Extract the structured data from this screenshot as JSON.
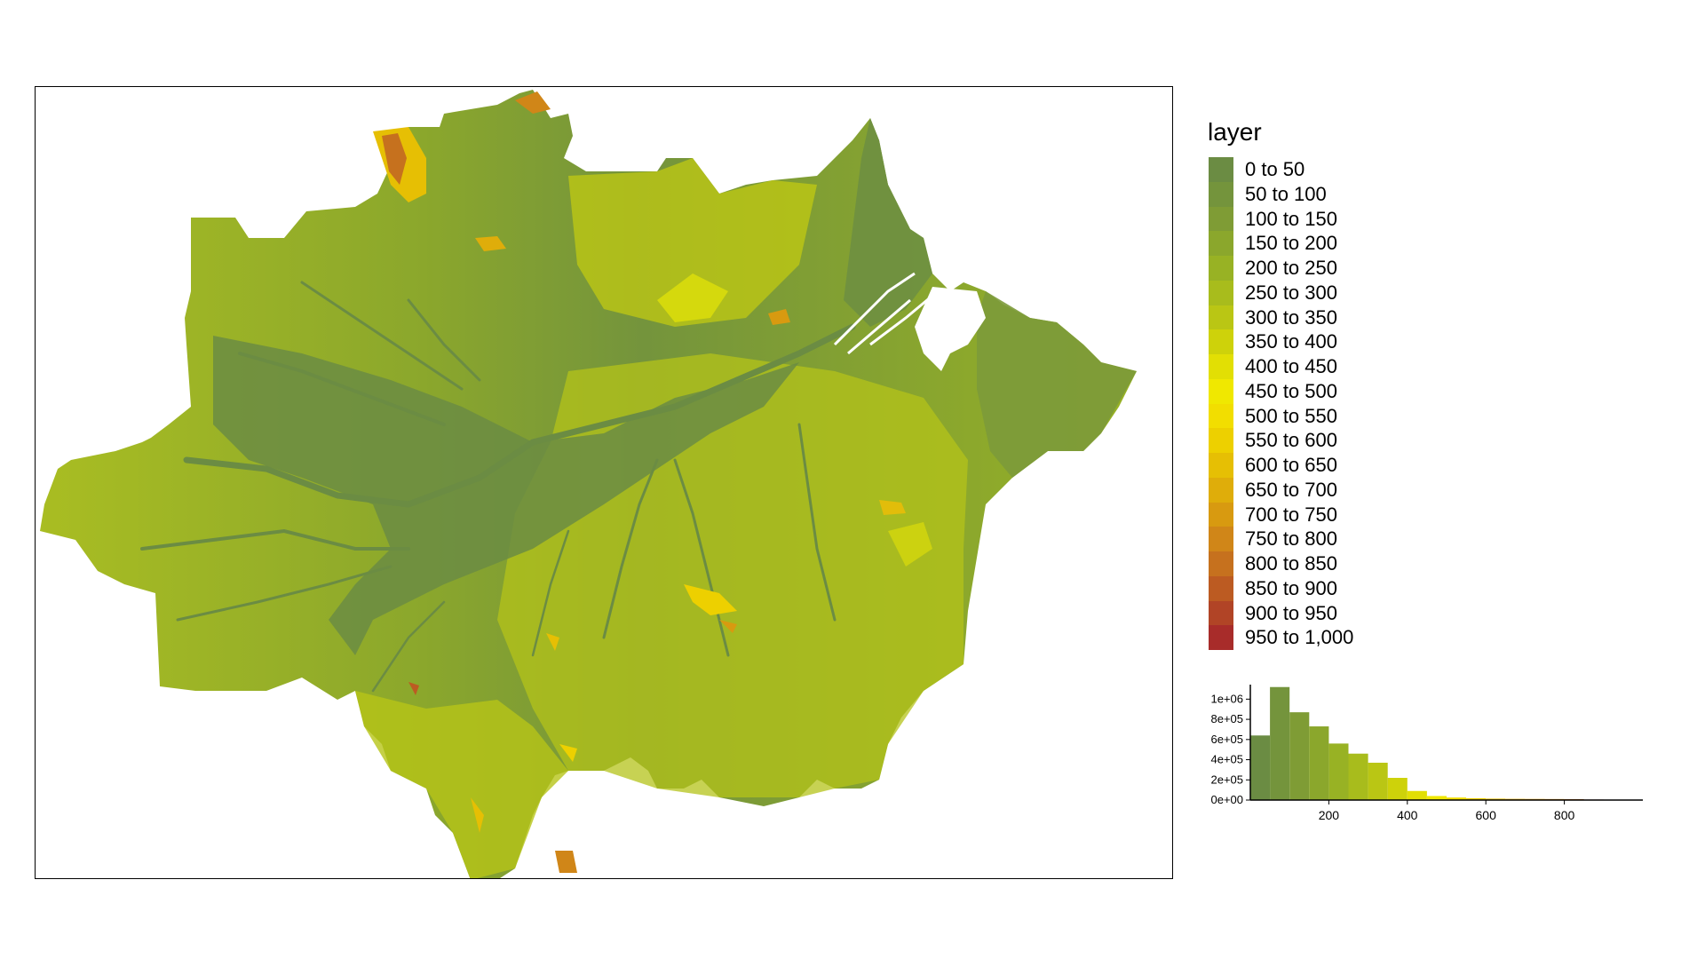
{
  "legend": {
    "title": "layer",
    "classes": [
      {
        "label": "0 to 50",
        "color": "#6b8c43"
      },
      {
        "label": "50 to 100",
        "color": "#74943c"
      },
      {
        "label": "100 to 150",
        "color": "#7f9c35"
      },
      {
        "label": "150 to 200",
        "color": "#8ba72c"
      },
      {
        "label": "200 to 250",
        "color": "#98b224"
      },
      {
        "label": "250 to 300",
        "color": "#a8bc1c"
      },
      {
        "label": "300 to 350",
        "color": "#bac614"
      },
      {
        "label": "350 to 400",
        "color": "#ced20a"
      },
      {
        "label": "400 to 450",
        "color": "#e2df04"
      },
      {
        "label": "450 to 500",
        "color": "#f0e800"
      },
      {
        "label": "500 to 550",
        "color": "#f2de00"
      },
      {
        "label": "550 to 600",
        "color": "#edd000"
      },
      {
        "label": "600 to 650",
        "color": "#e6bf04"
      },
      {
        "label": "650 to 700",
        "color": "#dfad0a"
      },
      {
        "label": "700 to 750",
        "color": "#d89a10"
      },
      {
        "label": "750 to 800",
        "color": "#d08618"
      },
      {
        "label": "800 to 850",
        "color": "#c6711e"
      },
      {
        "label": "850 to 900",
        "color": "#bc5b22"
      },
      {
        "label": "900 to 950",
        "color": "#b14426"
      },
      {
        "label": "950 to 1,000",
        "color": "#a82c2a"
      }
    ]
  },
  "chart_data": {
    "type": "bar",
    "title": "",
    "xlabel": "",
    "ylabel": "",
    "x_ticks": [
      200,
      400,
      600,
      800
    ],
    "y_tick_labels": [
      "0e+00",
      "2e+05",
      "4e+05",
      "6e+05",
      "8e+05",
      "1e+06"
    ],
    "xlim": [
      0,
      1000
    ],
    "ylim": [
      0,
      1100000
    ],
    "bin_width": 50,
    "bins": [
      0,
      50,
      100,
      150,
      200,
      250,
      300,
      350,
      400,
      450,
      500,
      550,
      600,
      650,
      700,
      750,
      800,
      850,
      900,
      950
    ],
    "values": [
      640000,
      1120000,
      870000,
      730000,
      560000,
      460000,
      370000,
      220000,
      90000,
      40000,
      25000,
      18000,
      14000,
      12000,
      11000,
      10000,
      9000,
      5000,
      2000,
      1000
    ]
  }
}
